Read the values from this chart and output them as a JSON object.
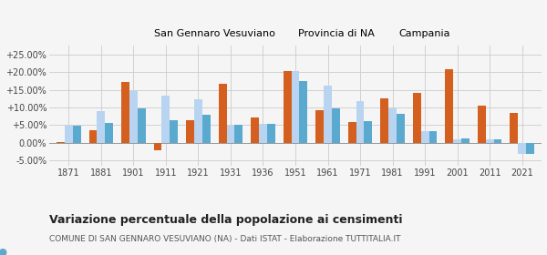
{
  "years": [
    1871,
    1881,
    1901,
    1911,
    1921,
    1931,
    1936,
    1951,
    1961,
    1971,
    1981,
    1991,
    2001,
    2011,
    2021
  ],
  "san_gennaro": [
    0.3,
    3.7,
    17.2,
    -2.2,
    6.5,
    16.7,
    7.3,
    20.4,
    9.2,
    5.9,
    12.5,
    14.2,
    21.0,
    10.5,
    8.5
  ],
  "provincia_na": [
    4.9,
    8.9,
    14.7,
    13.5,
    12.3,
    4.9,
    5.3,
    20.4,
    16.2,
    11.9,
    9.7,
    3.2,
    1.1,
    1.1,
    -3.2
  ],
  "campania": [
    4.9,
    5.6,
    9.7,
    6.4,
    7.9,
    5.0,
    5.3,
    17.5,
    9.7,
    6.2,
    8.1,
    3.4,
    1.2,
    1.1,
    -3.2
  ],
  "color_san_gennaro": "#d45f1e",
  "color_provincia": "#b8d4f0",
  "color_campania": "#5aaad0",
  "title": "Variazione percentuale della popolazione ai censimenti",
  "subtitle": "COMUNE DI SAN GENNARO VESUVIANO (NA) - Dati ISTAT - Elaborazione TUTTITALIA.IT",
  "legend_labels": [
    "San Gennaro Vesuviano",
    "Provincia di NA",
    "Campania"
  ],
  "ylim": [
    -6.5,
    27.5
  ],
  "yticks": [
    -5.0,
    0.0,
    5.0,
    10.0,
    15.0,
    20.0,
    25.0
  ],
  "background_color": "#f5f5f5"
}
